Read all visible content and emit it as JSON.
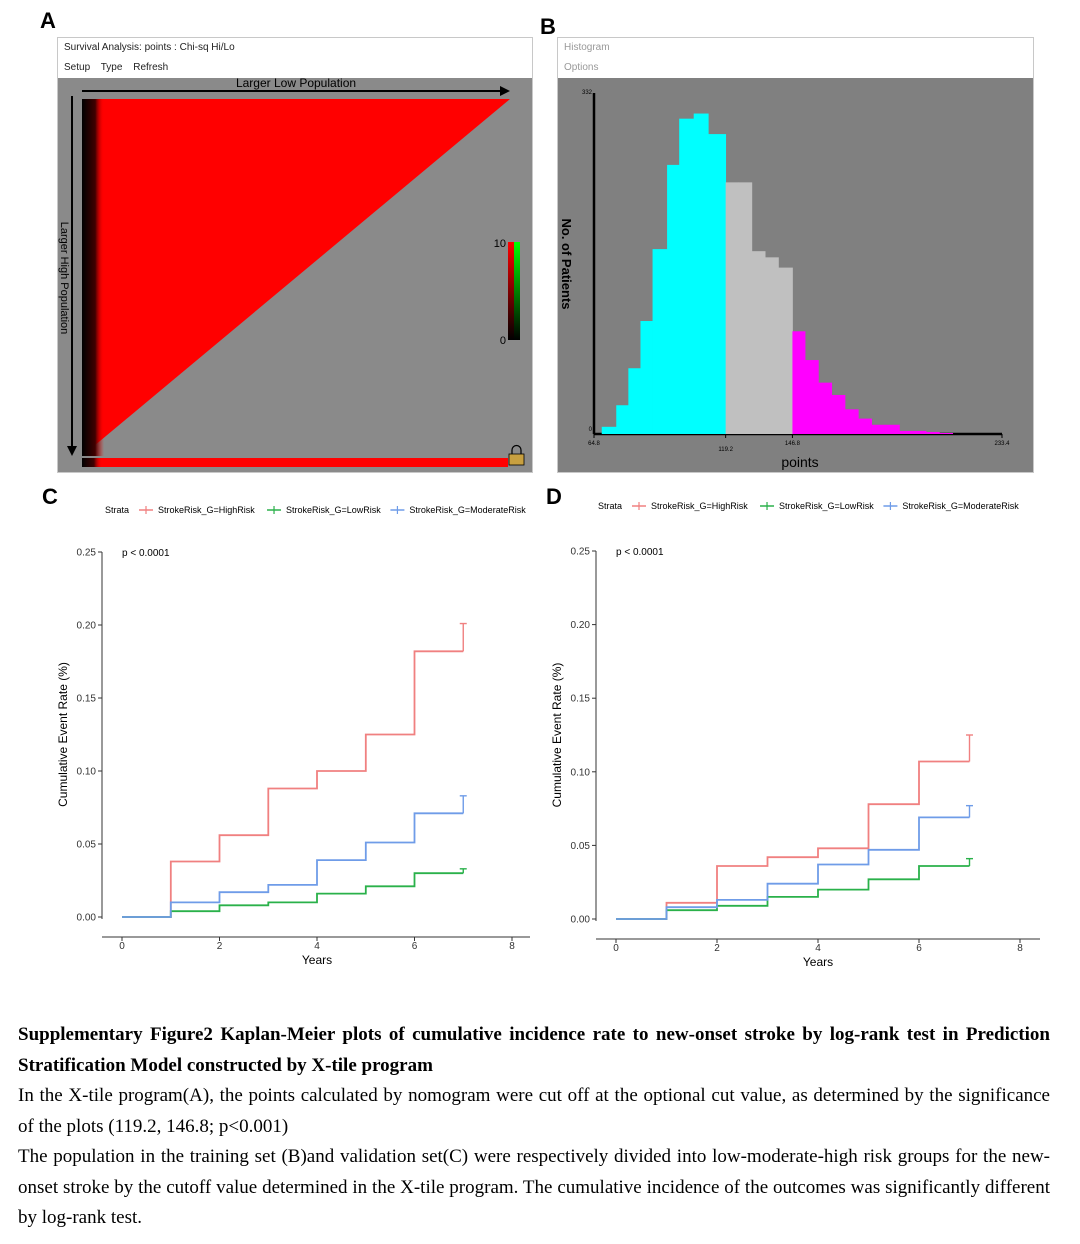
{
  "panel_labels": [
    "A",
    "B",
    "C",
    "D"
  ],
  "panel_a": {
    "window_title": "Survival Analysis: points : Chi-sq Hi/Lo",
    "menu": [
      "Setup",
      "Type",
      "Refresh"
    ],
    "top_label": "Larger Low Population",
    "left_label": "Larger High Population",
    "scale_max": "10",
    "scale_min": "0"
  },
  "panel_b": {
    "window_title": "Histogram",
    "menu": [
      "Options"
    ],
    "y_top_label": "332",
    "y_bottom_label": "0",
    "ylabel": "No. of Patients",
    "xlabel": "points",
    "x_ticks": [
      "64.8",
      "119.2",
      "146.8",
      "233.4"
    ]
  },
  "chart_data": [
    {
      "panel": "B",
      "type": "bar",
      "ylabel": "No. of Patients",
      "xlabel": "points",
      "xlim": [
        64.8,
        233.4
      ],
      "ylim": [
        0,
        332
      ],
      "cutoffs": [
        119.2,
        146.8
      ],
      "bins": [
        {
          "x": [
            68.0,
            74.0
          ],
          "count": 7,
          "color": "#00FFFF"
        },
        {
          "x": [
            74.0,
            79.0
          ],
          "count": 28,
          "color": "#00FFFF"
        },
        {
          "x": [
            79.0,
            84.0
          ],
          "count": 64,
          "color": "#00FFFF"
        },
        {
          "x": [
            84.0,
            89.0
          ],
          "count": 110,
          "color": "#00FFFF"
        },
        {
          "x": [
            89.0,
            95.0
          ],
          "count": 180,
          "color": "#00FFFF"
        },
        {
          "x": [
            95.0,
            100.0
          ],
          "count": 262,
          "color": "#00FFFF"
        },
        {
          "x": [
            100.0,
            106.0
          ],
          "count": 307,
          "color": "#00FFFF"
        },
        {
          "x": [
            106.0,
            112.0
          ],
          "count": 312,
          "color": "#00FFFF"
        },
        {
          "x": [
            112.0,
            119.2
          ],
          "count": 292,
          "color": "#00FFFF"
        },
        {
          "x": [
            119.2,
            124.5
          ],
          "count": 245,
          "color": "#C0C0C0"
        },
        {
          "x": [
            124.5,
            130.0
          ],
          "count": 245,
          "color": "#C0C0C0"
        },
        {
          "x": [
            130.0,
            135.5
          ],
          "count": 178,
          "color": "#C0C0C0"
        },
        {
          "x": [
            135.5,
            141.0
          ],
          "count": 172,
          "color": "#C0C0C0"
        },
        {
          "x": [
            141.0,
            146.8
          ],
          "count": 162,
          "color": "#C0C0C0"
        },
        {
          "x": [
            146.8,
            152.0
          ],
          "count": 100,
          "color": "#FF00FF"
        },
        {
          "x": [
            152.0,
            157.5
          ],
          "count": 72,
          "color": "#FF00FF"
        },
        {
          "x": [
            157.5,
            163.0
          ],
          "count": 50,
          "color": "#FF00FF"
        },
        {
          "x": [
            163.0,
            168.5
          ],
          "count": 38,
          "color": "#FF00FF"
        },
        {
          "x": [
            168.5,
            174.0
          ],
          "count": 24,
          "color": "#FF00FF"
        },
        {
          "x": [
            174.0,
            179.5
          ],
          "count": 15,
          "color": "#FF00FF"
        },
        {
          "x": [
            179.5,
            185.0
          ],
          "count": 9,
          "color": "#FF00FF"
        },
        {
          "x": [
            185.0,
            191.0
          ],
          "count": 9,
          "color": "#FF00FF"
        },
        {
          "x": [
            191.0,
            196.5
          ],
          "count": 3,
          "color": "#FF00FF"
        },
        {
          "x": [
            196.5,
            202.0
          ],
          "count": 3,
          "color": "#FF00FF"
        },
        {
          "x": [
            202.0,
            207.5
          ],
          "count": 2,
          "color": "#FF00FF"
        },
        {
          "x": [
            207.5,
            213.0
          ],
          "count": 1,
          "color": "#FF00FF"
        }
      ]
    },
    {
      "panel": "C",
      "type": "line",
      "step": true,
      "xlabel": "Years",
      "ylabel": "Cumulative Event Rate (%)",
      "xlim": [
        0,
        8
      ],
      "ylim": [
        0,
        0.25
      ],
      "x_ticks": [
        0,
        2,
        4,
        6,
        8
      ],
      "y_ticks": [
        "0.00",
        "0.05",
        "0.10",
        "0.15",
        "0.20",
        "0.25"
      ],
      "legend_title": "Strata",
      "legend_position": "top",
      "pvalue": "p < 0.0001",
      "series": [
        {
          "name": "StrokeRisk_G=HighRisk",
          "color": "#F08080",
          "x": [
            0,
            1,
            1,
            2,
            2,
            3,
            3,
            4,
            4,
            5,
            5,
            6,
            6,
            7
          ],
          "y": [
            0,
            0,
            0.038,
            0.038,
            0.056,
            0.056,
            0.088,
            0.088,
            0.1,
            0.1,
            0.125,
            0.125,
            0.182,
            0.182
          ],
          "censor": [
            7,
            0.201
          ]
        },
        {
          "name": "StrokeRisk_G=LowRisk",
          "color": "#2AB14A",
          "x": [
            0,
            1,
            1,
            2,
            2,
            3,
            3,
            4,
            4,
            5,
            5,
            6,
            6,
            7
          ],
          "y": [
            0,
            0,
            0.004,
            0.004,
            0.008,
            0.008,
            0.01,
            0.01,
            0.016,
            0.016,
            0.021,
            0.021,
            0.03,
            0.03
          ],
          "censor": [
            7,
            0.033
          ]
        },
        {
          "name": "StrokeRisk_G=ModerateRisk",
          "color": "#6F9CE8",
          "x": [
            0,
            1,
            1,
            2,
            2,
            3,
            3,
            4,
            4,
            5,
            5,
            6,
            6,
            7
          ],
          "y": [
            0,
            0,
            0.01,
            0.01,
            0.017,
            0.017,
            0.022,
            0.022,
            0.039,
            0.039,
            0.051,
            0.051,
            0.071,
            0.071
          ],
          "censor": [
            7,
            0.083
          ]
        }
      ]
    },
    {
      "panel": "D",
      "type": "line",
      "step": true,
      "xlabel": "Years",
      "ylabel": "Cumulative Event Rate (%)",
      "xlim": [
        0,
        8
      ],
      "ylim": [
        0,
        0.25
      ],
      "x_ticks": [
        0,
        2,
        4,
        6,
        8
      ],
      "y_ticks": [
        "0.00",
        "0.05",
        "0.10",
        "0.15",
        "0.20",
        "0.25"
      ],
      "legend_title": "Strata",
      "legend_position": "top",
      "pvalue": "p < 0.0001",
      "series": [
        {
          "name": "StrokeRisk_G=HighRisk",
          "color": "#F08080",
          "x": [
            0,
            1,
            1,
            2,
            2,
            3,
            3,
            4,
            4,
            5,
            5,
            6,
            6,
            7
          ],
          "y": [
            0,
            0,
            0.011,
            0.011,
            0.036,
            0.036,
            0.042,
            0.042,
            0.048,
            0.048,
            0.078,
            0.078,
            0.107,
            0.107
          ],
          "censor": [
            7,
            0.125
          ]
        },
        {
          "name": "StrokeRisk_G=LowRisk",
          "color": "#2AB14A",
          "x": [
            0,
            1,
            1,
            2,
            2,
            3,
            3,
            4,
            4,
            5,
            5,
            6,
            6,
            7
          ],
          "y": [
            0,
            0,
            0.006,
            0.006,
            0.009,
            0.009,
            0.015,
            0.015,
            0.02,
            0.02,
            0.027,
            0.027,
            0.036,
            0.036
          ],
          "censor": [
            7,
            0.041
          ]
        },
        {
          "name": "StrokeRisk_G=ModerateRisk",
          "color": "#6F9CE8",
          "x": [
            0,
            1,
            1,
            2,
            2,
            3,
            3,
            4,
            4,
            5,
            5,
            6,
            6,
            7
          ],
          "y": [
            0,
            0,
            0.008,
            0.008,
            0.013,
            0.013,
            0.024,
            0.024,
            0.037,
            0.037,
            0.047,
            0.047,
            0.069,
            0.069
          ],
          "censor": [
            7,
            0.077
          ]
        }
      ]
    }
  ],
  "caption": {
    "title": "Supplementary Figure2 Kaplan-Meier plots of cumulative incidence rate to new-onset stroke by log-rank test in Prediction Stratification Model constructed by X-tile program",
    "line1": "In the X-tile program(A), the points calculated by nomogram were cut off at the optional cut value, as determined by the significance of the plots (119.2, 146.8; p<0.001)",
    "line2": "The population in the training set (B)and validation set(C) were respectively divided into low-moderate-high risk groups for the new-onset stroke by the cutoff value determined in the X-tile program. The cumulative incidence of the outcomes was significantly different by log-rank test."
  }
}
